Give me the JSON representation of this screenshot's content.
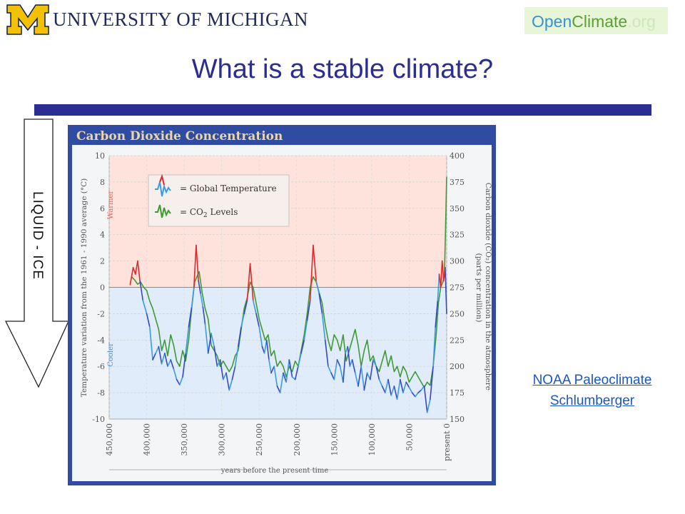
{
  "header": {
    "university_logo_text": "UNIVERSITY OF MICHIGAN",
    "openclimate_logo": {
      "open": "Open",
      "climate": "Climate",
      "org": ".org"
    }
  },
  "slide": {
    "title": "What is a stable climate?",
    "arrow_label": "LIQUID - ICE"
  },
  "links": [
    {
      "label": "NOAA Paleoclimate"
    },
    {
      "label": "Schlumberger"
    }
  ],
  "colors": {
    "title": "#2b2e90",
    "rule": "#2b2e90",
    "chart_frame": "#2f4ba2",
    "warm_band": "#fde3dc",
    "cool_band": "#e0ecf9",
    "temperature_warm": "#e0282a",
    "temperature_cool_dark": "#3348c4",
    "temperature_cool_light": "#3b9ae6",
    "co2": "#3f9a34",
    "link": "#1a56c8"
  },
  "chart_data": {
    "type": "line",
    "title": "Carbon Dioxide Concentration",
    "legend": [
      "= Global Temperature",
      "= CO2 Levels"
    ],
    "legend_position": "top-left",
    "ylabel_left": "Temperature variation from the 1961 - 1990 average (°C)",
    "ylabel_right": "Carbon dioxide (CO2) concentration in the atmosphere (parts per million)",
    "xlabel": "years before the present time",
    "band_labels": {
      "warm": "Warmer",
      "cool": "Cooler"
    },
    "left_ticks": [
      "10",
      "8",
      "6",
      "4",
      "2",
      "0",
      "-2",
      "-4",
      "-6",
      "-8",
      "-10"
    ],
    "right_ticks": [
      "400",
      "375",
      "350",
      "325",
      "300",
      "275",
      "250",
      "225",
      "200",
      "175",
      "150"
    ],
    "x_ticks": [
      "450,000",
      "400,000",
      "350,000",
      "300,000",
      "250,000",
      "200,000",
      "150,000",
      "100,000",
      "50,000",
      "present 0"
    ],
    "xlim": [
      450000,
      0
    ],
    "ylim_left": [
      -10,
      10
    ],
    "ylim_right": [
      150,
      400
    ],
    "grid": true,
    "series": [
      {
        "name": "Global Temperature",
        "x": [
          422000,
          418000,
          415000,
          412000,
          409000,
          405000,
          400000,
          396000,
          392000,
          388000,
          384000,
          380000,
          376000,
          372000,
          368000,
          364000,
          360000,
          356000,
          352000,
          348000,
          344000,
          340000,
          337000,
          334000,
          331000,
          328000,
          325000,
          322000,
          318000,
          314000,
          310000,
          306000,
          302000,
          298000,
          294000,
          290000,
          286000,
          282000,
          278000,
          274000,
          270000,
          266000,
          262000,
          258000,
          254000,
          250000,
          246000,
          243000,
          240000,
          237000,
          234000,
          230000,
          226000,
          222000,
          218000,
          214000,
          210000,
          206000,
          202000,
          198000,
          194000,
          190000,
          186000,
          182000,
          178000,
          174000,
          170000,
          166000,
          162000,
          158000,
          154000,
          150000,
          146000,
          142000,
          138000,
          135000,
          132000,
          129000,
          126000,
          122000,
          118000,
          114000,
          110000,
          106000,
          102000,
          98000,
          94000,
          90000,
          86000,
          82000,
          78000,
          74000,
          70000,
          66000,
          62000,
          58000,
          54000,
          50000,
          46000,
          42000,
          38000,
          34000,
          30000,
          26000,
          22000,
          18000,
          15000,
          12000,
          10000,
          8000,
          6000,
          4000,
          2000,
          0
        ],
        "y": [
          0.2,
          1.5,
          1.0,
          2.0,
          0.5,
          -1.0,
          -2.0,
          -3.0,
          -5.5,
          -5.0,
          -4.5,
          -5.8,
          -5.0,
          -6.0,
          -5.5,
          -6.2,
          -7.0,
          -7.4,
          -6.8,
          -5.0,
          -3.0,
          -1.5,
          0.0,
          3.2,
          0.5,
          -0.5,
          -1.5,
          -2.8,
          -5.0,
          -3.5,
          -4.5,
          -6.0,
          -5.5,
          -7.0,
          -6.5,
          -7.8,
          -7.0,
          -6.0,
          -4.5,
          -3.0,
          -2.0,
          -1.0,
          1.8,
          -1.0,
          -2.0,
          -3.0,
          -4.5,
          -5.0,
          -4.0,
          -5.5,
          -6.5,
          -6.0,
          -7.5,
          -8.0,
          -6.5,
          -7.2,
          -5.5,
          -6.8,
          -7.0,
          -6.0,
          -5.0,
          -4.0,
          -2.5,
          -1.0,
          3.2,
          0.5,
          -0.5,
          -2.0,
          -4.0,
          -6.0,
          -6.5,
          -7.0,
          -5.5,
          -6.0,
          -7.2,
          -5.0,
          -4.5,
          -6.0,
          -5.5,
          -6.5,
          -7.5,
          -6.0,
          -7.8,
          -6.5,
          -7.0,
          -5.5,
          -6.0,
          -7.0,
          -7.5,
          -8.0,
          -7.0,
          -8.2,
          -7.5,
          -8.5,
          -7.0,
          -8.0,
          -7.2,
          -7.6,
          -8.0,
          -8.3,
          -8.0,
          -7.8,
          -7.5,
          -9.5,
          -8.5,
          -6.0,
          -3.0,
          -1.0,
          1.0,
          0.0,
          2.0,
          0.5,
          1.5,
          -2.0
        ]
      },
      {
        "name": "CO2 Levels",
        "x": [
          420000,
          416000,
          412000,
          408000,
          404000,
          400000,
          396000,
          392000,
          388000,
          384000,
          380000,
          376000,
          372000,
          368000,
          364000,
          360000,
          356000,
          352000,
          348000,
          344000,
          340000,
          336000,
          333000,
          330000,
          326000,
          322000,
          318000,
          314000,
          310000,
          306000,
          302000,
          298000,
          294000,
          290000,
          286000,
          282000,
          278000,
          274000,
          270000,
          266000,
          262000,
          258000,
          254000,
          250000,
          246000,
          242000,
          238000,
          234000,
          230000,
          226000,
          222000,
          218000,
          214000,
          210000,
          206000,
          202000,
          198000,
          194000,
          190000,
          186000,
          182000,
          178000,
          174000,
          170000,
          166000,
          162000,
          158000,
          154000,
          150000,
          146000,
          142000,
          138000,
          134000,
          130000,
          126000,
          122000,
          118000,
          114000,
          110000,
          106000,
          102000,
          98000,
          94000,
          90000,
          86000,
          82000,
          78000,
          74000,
          70000,
          66000,
          62000,
          58000,
          54000,
          50000,
          46000,
          42000,
          38000,
          34000,
          30000,
          26000,
          22000,
          18000,
          14000,
          11000,
          8000,
          5000,
          3000,
          1500,
          0
        ],
        "y": [
          285,
          282,
          278,
          280,
          275,
          272,
          262,
          255,
          245,
          235,
          215,
          225,
          210,
          230,
          220,
          205,
          200,
          215,
          205,
          225,
          255,
          280,
          285,
          290,
          270,
          255,
          245,
          220,
          215,
          210,
          200,
          205,
          200,
          195,
          200,
          210,
          215,
          235,
          255,
          265,
          280,
          275,
          260,
          245,
          235,
          225,
          230,
          210,
          215,
          200,
          205,
          200,
          190,
          200,
          195,
          205,
          200,
          215,
          230,
          250,
          275,
          285,
          280,
          270,
          260,
          240,
          225,
          215,
          230,
          225,
          215,
          230,
          205,
          215,
          225,
          235,
          220,
          200,
          215,
          225,
          205,
          210,
          200,
          195,
          205,
          215,
          200,
          210,
          195,
          200,
          190,
          200,
          195,
          185,
          190,
          195,
          190,
          185,
          180,
          185,
          182,
          200,
          230,
          260,
          275,
          280,
          285,
          330,
          380
        ]
      }
    ]
  }
}
